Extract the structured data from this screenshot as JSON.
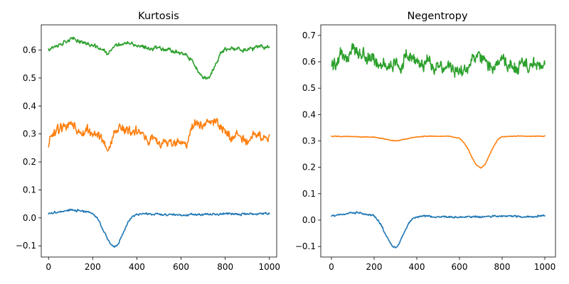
{
  "chart_data": [
    {
      "type": "line",
      "title": "Kurtosis",
      "xlabel": "",
      "ylabel": "",
      "xlim": [
        -33,
        1033
      ],
      "ylim": [
        -0.14,
        0.69
      ],
      "xticks": [
        0,
        200,
        400,
        600,
        800,
        1000
      ],
      "yticks": [
        -0.1,
        0.0,
        0.1,
        0.2,
        0.3,
        0.4,
        0.5,
        0.6
      ],
      "xtick_labels": [
        "0",
        "200",
        "400",
        "600",
        "800",
        "1000"
      ],
      "ytick_labels": [
        "−0.1",
        "0.0",
        "0.1",
        "0.2",
        "0.3",
        "0.4",
        "0.5",
        "0.6"
      ],
      "grid": false,
      "series": [
        {
          "color": "#1f77b4",
          "x": [
            0,
            50,
            100,
            150,
            200,
            220,
            240,
            260,
            280,
            290,
            300,
            310,
            320,
            340,
            360,
            380,
            400,
            450,
            500,
            550,
            600,
            650,
            700,
            750,
            800,
            850,
            900,
            950,
            1000
          ],
          "y": [
            0.015,
            0.022,
            0.028,
            0.025,
            0.015,
            0.0,
            -0.03,
            -0.065,
            -0.092,
            -0.1,
            -0.103,
            -0.098,
            -0.085,
            -0.05,
            -0.015,
            0.005,
            0.013,
            0.015,
            0.012,
            0.012,
            0.011,
            0.012,
            0.012,
            0.013,
            0.015,
            0.014,
            0.013,
            0.015,
            0.017
          ]
        },
        {
          "color": "#ff7f0e",
          "x": [
            0,
            25,
            50,
            75,
            100,
            125,
            150,
            175,
            200,
            225,
            250,
            270,
            300,
            325,
            350,
            375,
            400,
            425,
            450,
            475,
            500,
            525,
            550,
            575,
            600,
            625,
            640,
            660,
            680,
            700,
            725,
            750,
            775,
            800,
            825,
            850,
            875,
            900,
            925,
            950,
            975,
            1000
          ],
          "y": [
            0.265,
            0.3,
            0.315,
            0.335,
            0.33,
            0.32,
            0.3,
            0.315,
            0.3,
            0.29,
            0.275,
            0.24,
            0.31,
            0.325,
            0.32,
            0.3,
            0.31,
            0.29,
            0.27,
            0.285,
            0.26,
            0.28,
            0.27,
            0.26,
            0.275,
            0.26,
            0.31,
            0.335,
            0.34,
            0.33,
            0.35,
            0.34,
            0.33,
            0.31,
            0.285,
            0.3,
            0.29,
            0.275,
            0.3,
            0.29,
            0.285,
            0.29
          ]
        },
        {
          "color": "#2ca02c",
          "x": [
            0,
            50,
            100,
            150,
            200,
            250,
            270,
            300,
            350,
            400,
            450,
            500,
            550,
            600,
            630,
            660,
            680,
            700,
            720,
            740,
            760,
            780,
            800,
            850,
            900,
            950,
            1000
          ],
          "y": [
            0.605,
            0.62,
            0.64,
            0.63,
            0.615,
            0.6,
            0.585,
            0.615,
            0.625,
            0.615,
            0.605,
            0.61,
            0.6,
            0.59,
            0.575,
            0.55,
            0.52,
            0.495,
            0.5,
            0.52,
            0.555,
            0.59,
            0.6,
            0.605,
            0.6,
            0.61,
            0.61
          ]
        }
      ]
    },
    {
      "type": "line",
      "title": "Negentropy",
      "xlabel": "",
      "ylabel": "",
      "xlim": [
        -50,
        1050
      ],
      "ylim": [
        -0.14,
        0.74
      ],
      "xticks": [
        0,
        200,
        400,
        600,
        800,
        1000
      ],
      "yticks": [
        -0.1,
        0.0,
        0.1,
        0.2,
        0.3,
        0.4,
        0.5,
        0.6,
        0.7
      ],
      "xtick_labels": [
        "0",
        "200",
        "400",
        "600",
        "800",
        "1000"
      ],
      "ytick_labels": [
        "−0.1",
        "0.0",
        "0.1",
        "0.2",
        "0.3",
        "0.4",
        "0.5",
        "0.6",
        "0.7"
      ],
      "grid": false,
      "series": [
        {
          "color": "#1f77b4",
          "x": [
            0,
            50,
            100,
            150,
            200,
            220,
            240,
            260,
            280,
            290,
            300,
            310,
            320,
            340,
            360,
            380,
            400,
            450,
            500,
            550,
            600,
            650,
            700,
            750,
            800,
            850,
            900,
            950,
            1000
          ],
          "y": [
            0.015,
            0.022,
            0.028,
            0.025,
            0.015,
            0.0,
            -0.03,
            -0.065,
            -0.092,
            -0.1,
            -0.103,
            -0.098,
            -0.085,
            -0.05,
            -0.015,
            0.005,
            0.013,
            0.015,
            0.012,
            0.012,
            0.011,
            0.012,
            0.012,
            0.013,
            0.015,
            0.014,
            0.013,
            0.015,
            0.017
          ]
        },
        {
          "color": "#ff7f0e",
          "x": [
            0,
            100,
            200,
            250,
            280,
            300,
            320,
            350,
            400,
            450,
            500,
            550,
            600,
            620,
            640,
            660,
            680,
            700,
            720,
            740,
            760,
            780,
            800,
            850,
            900,
            950,
            1000
          ],
          "y": [
            0.318,
            0.316,
            0.314,
            0.308,
            0.302,
            0.3,
            0.302,
            0.308,
            0.315,
            0.318,
            0.318,
            0.318,
            0.31,
            0.295,
            0.27,
            0.235,
            0.208,
            0.198,
            0.21,
            0.245,
            0.28,
            0.305,
            0.316,
            0.318,
            0.318,
            0.318,
            0.318
          ],
          "smooth": true
        },
        {
          "color": "#2ca02c",
          "x": [
            0,
            25,
            50,
            75,
            100,
            125,
            150,
            175,
            200,
            225,
            250,
            265,
            280,
            300,
            325,
            350,
            375,
            400,
            425,
            450,
            475,
            500,
            525,
            550,
            575,
            600,
            625,
            650,
            675,
            700,
            725,
            750,
            775,
            800,
            825,
            850,
            875,
            900,
            925,
            950,
            975,
            1000
          ],
          "y": [
            0.585,
            0.6,
            0.63,
            0.61,
            0.66,
            0.62,
            0.64,
            0.6,
            0.62,
            0.59,
            0.61,
            0.56,
            0.58,
            0.6,
            0.57,
            0.63,
            0.6,
            0.62,
            0.58,
            0.61,
            0.57,
            0.6,
            0.56,
            0.59,
            0.57,
            0.575,
            0.56,
            0.6,
            0.62,
            0.61,
            0.595,
            0.58,
            0.6,
            0.605,
            0.58,
            0.595,
            0.57,
            0.6,
            0.585,
            0.59,
            0.575,
            0.59
          ]
        }
      ]
    }
  ]
}
